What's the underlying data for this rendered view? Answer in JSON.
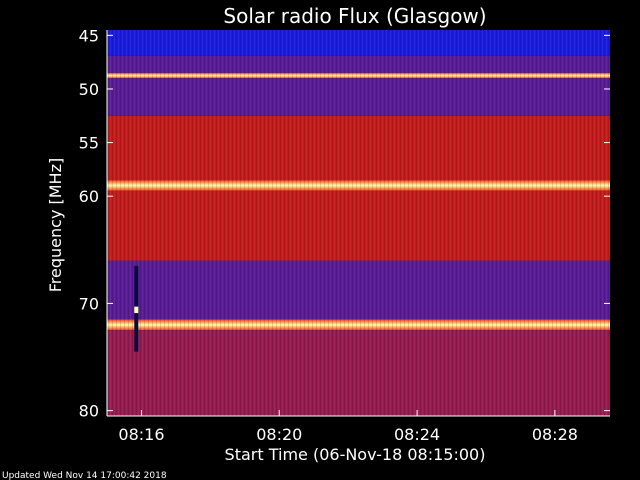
{
  "chart_data": {
    "type": "heatmap",
    "title": "Solar radio Flux (Glasgow)",
    "ylabel": "Frequency [MHz]",
    "xlabel": "Start Time (06-Nov-18 08:15:00)",
    "footer": "Updated Wed Nov 14 17:00:42 2018",
    "y_ticks": [
      45,
      50,
      55,
      60,
      70,
      80
    ],
    "y_range": [
      44.5,
      80.5
    ],
    "x_ticks": [
      "08:16",
      "08:20",
      "08:24",
      "08:28"
    ],
    "x_range_minutes": [
      15.0,
      29.6
    ],
    "bands_mhz": [
      {
        "from": 44.5,
        "to": 46.9,
        "level": "low"
      },
      {
        "from": 46.9,
        "to": 48.5,
        "level": "mid-low"
      },
      {
        "from": 48.5,
        "to": 49.0,
        "level": "peak"
      },
      {
        "from": 49.0,
        "to": 52.5,
        "level": "mid-low"
      },
      {
        "from": 52.5,
        "to": 53.5,
        "level": "high"
      },
      {
        "from": 53.5,
        "to": 58.5,
        "level": "high"
      },
      {
        "from": 58.5,
        "to": 59.5,
        "level": "peak"
      },
      {
        "from": 59.5,
        "to": 66.0,
        "level": "high"
      },
      {
        "from": 66.0,
        "to": 71.5,
        "level": "mid-low"
      },
      {
        "from": 71.5,
        "to": 72.5,
        "level": "peak"
      },
      {
        "from": 72.5,
        "to": 80.5,
        "level": "mid"
      }
    ],
    "burst": {
      "time_minutes": 15.85,
      "freq_from": 66.5,
      "freq_to": 74.5
    },
    "colors": {
      "low": "#1a1ae6",
      "mid-low": "#5a1a9a",
      "mid": "#9a1a50",
      "high": "#c81a1a",
      "peak": "#ffe080"
    }
  }
}
